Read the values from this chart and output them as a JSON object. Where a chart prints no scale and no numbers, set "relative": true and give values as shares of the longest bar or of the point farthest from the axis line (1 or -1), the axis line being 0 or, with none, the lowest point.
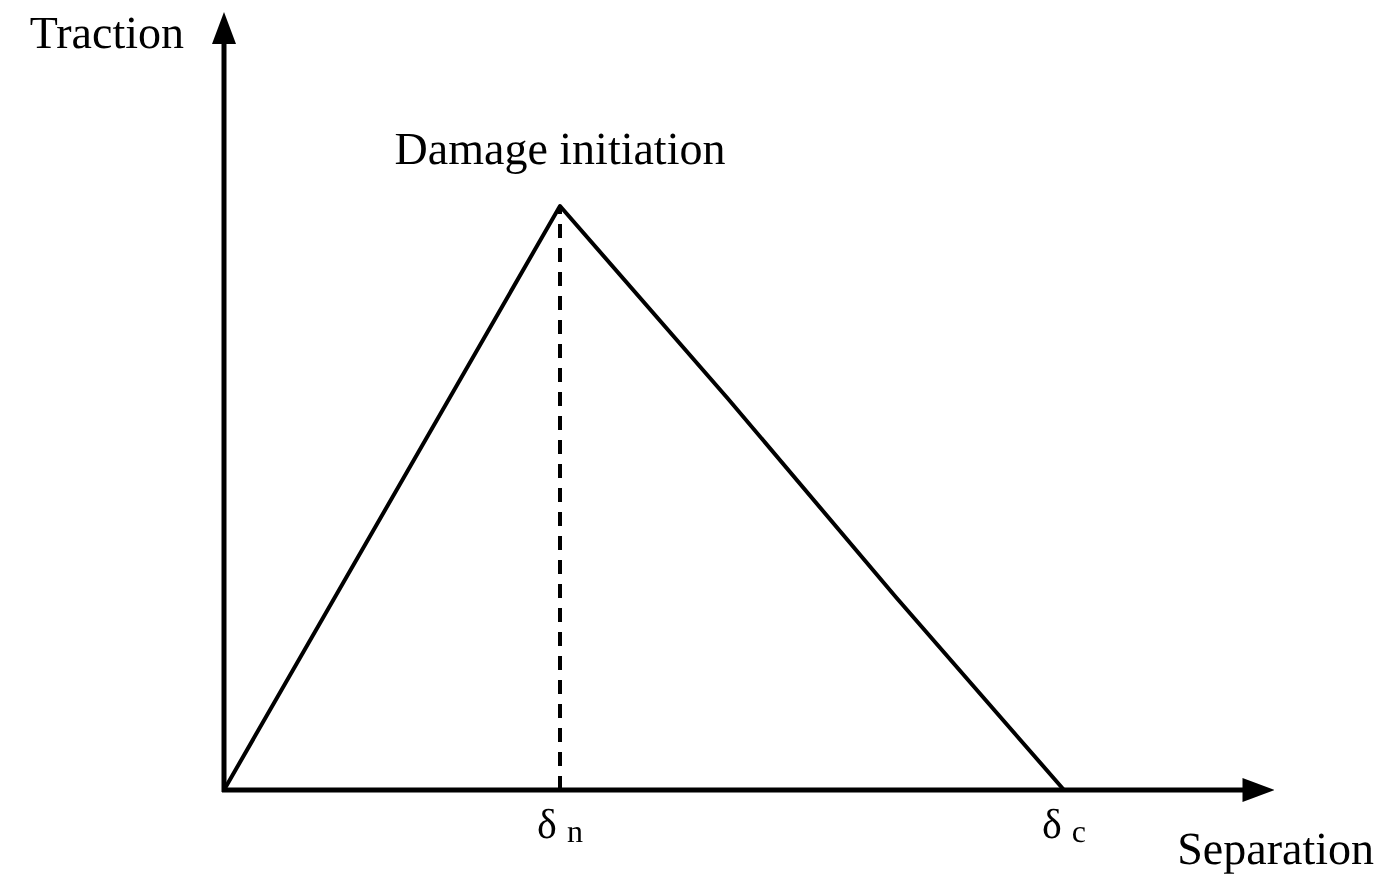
{
  "chart_data": {
    "type": "line",
    "xlabel": "Separation",
    "ylabel": "Traction",
    "annotations": [
      {
        "text": "Damage initiation",
        "x": "δ$_{n}$",
        "y": 1
      }
    ],
    "relative": true,
    "categories": [
      null,
      null,
      "δ$_{n}$",
      null,
      null,
      "δ$_{c}$"
    ],
    "grid": false,
    "legend": false,
    "marker": "none",
    "series": [
      {
        "color": "#000000",
        "values": [
          0,
          0.5,
          1,
          0.67,
          0.33,
          0
        ],
        "line_style": "solid"
      }
    ],
    "ref_lines": [
      {
        "axis": "x",
        "value": "δ$_{n}$",
        "color": "#000000",
        "line_style": "dashed"
      }
    ]
  }
}
